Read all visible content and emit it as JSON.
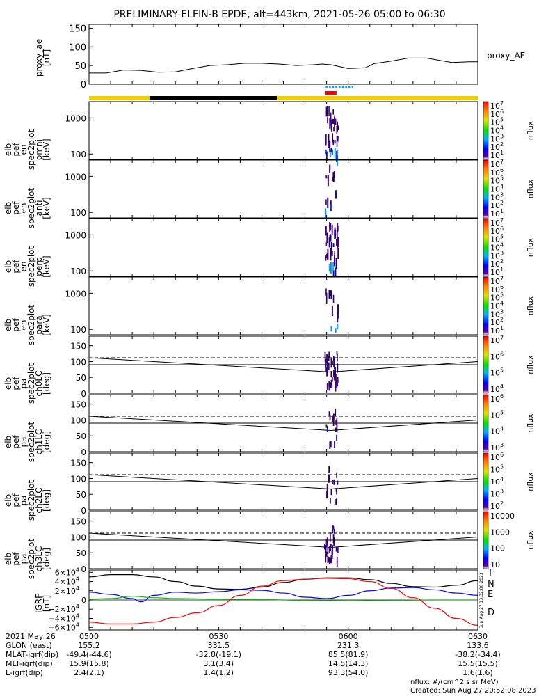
{
  "title": "PRELIMINARY ELFIN-B EPDE, alt=443km, 2021-05-26 05:00 to 06:30",
  "chart_data": {
    "type": "line",
    "time_range": [
      "05:00",
      "06:30"
    ],
    "proxy_ae": {
      "ylabel": [
        "proxy_ae",
        "[nT]"
      ],
      "legend": "proxy_AE",
      "yticks": [
        "0",
        "50",
        "100",
        "150"
      ],
      "ylim": [
        0,
        160
      ],
      "t": [
        0,
        4,
        8,
        12,
        16,
        20,
        24,
        28,
        32,
        36,
        40,
        44,
        48,
        52,
        54,
        56,
        60,
        64,
        66,
        70,
        74,
        78,
        80,
        84,
        88,
        90
      ],
      "v": [
        30,
        30,
        38,
        37,
        32,
        33,
        42,
        50,
        52,
        56,
        56,
        54,
        50,
        52,
        54,
        52,
        42,
        44,
        55,
        62,
        70,
        70,
        66,
        58,
        60,
        60
      ]
    },
    "status_bar": {
      "colors": [
        "#f0d000",
        "#000000",
        "#f0d000"
      ],
      "segments_min": [
        [
          0,
          14
        ],
        [
          14,
          43.5
        ],
        [
          43.5,
          90
        ]
      ]
    },
    "spec_panels": [
      {
        "ylabel": [
          "elb",
          "pef",
          "en",
          "spec2plot",
          "omni",
          "[keV]"
        ],
        "yticks": [
          "100",
          "1000"
        ],
        "cbar_ticks": [
          "10¹",
          "10²",
          "10³",
          "10⁴",
          "10⁵",
          "10⁶",
          "10⁷"
        ],
        "cbar_label": "nflux"
      },
      {
        "ylabel": [
          "elb",
          "pef",
          "en",
          "spec2plot",
          "anti",
          "[keV]"
        ],
        "yticks": [
          "100",
          "1000"
        ],
        "cbar_ticks": [
          "10¹",
          "10²",
          "10³",
          "10⁴",
          "10⁵",
          "10⁶",
          "10⁷"
        ],
        "cbar_label": "nflux"
      },
      {
        "ylabel": [
          "elb",
          "pef",
          "en",
          "spec2plot",
          "perp",
          "[keV]"
        ],
        "yticks": [
          "100",
          "1000"
        ],
        "cbar_ticks": [
          "10¹",
          "10²",
          "10³",
          "10⁴",
          "10⁵",
          "10⁶",
          "10⁷"
        ],
        "cbar_label": "nflux"
      },
      {
        "ylabel": [
          "elb",
          "pef",
          "en",
          "spec2plot",
          "para",
          "[keV]"
        ],
        "yticks": [
          "100",
          "1000"
        ],
        "cbar_ticks": [
          "10¹",
          "10²",
          "10³",
          "10⁴",
          "10⁵",
          "10⁶",
          "10⁷"
        ],
        "cbar_label": "nflux"
      }
    ],
    "pa_panels": [
      {
        "ylabel": [
          "elb",
          "pef",
          "pa",
          "spec2plot",
          "ch0LC",
          "[deg]"
        ],
        "yticks": [
          "0",
          "50",
          "100",
          "150"
        ],
        "cbar_ticks": [
          "10⁴",
          "10⁵",
          "10⁶",
          "10⁷"
        ],
        "cbar_label": "nflux"
      },
      {
        "ylabel": [
          "elb",
          "pef",
          "pa",
          "spec2plot",
          "ch1LC",
          "[deg]"
        ],
        "yticks": [
          "0",
          "50",
          "100",
          "150"
        ],
        "cbar_ticks": [
          "10³",
          "10⁴",
          "10⁵",
          "10⁶"
        ],
        "cbar_label": "nflux"
      },
      {
        "ylabel": [
          "elb",
          "pef",
          "pa",
          "spec2plot",
          "ch2LC",
          "[deg]"
        ],
        "yticks": [
          "0",
          "50",
          "100",
          "150"
        ],
        "cbar_ticks": [
          "10²",
          "10³",
          "10⁴",
          "10⁵",
          "10⁶"
        ],
        "cbar_label": "nflux"
      },
      {
        "ylabel": [
          "elb",
          "pef",
          "pa",
          "spec2plot",
          "ch3LC",
          "[deg]"
        ],
        "yticks": [
          "0",
          "50",
          "100",
          "150"
        ],
        "cbar_ticks": [
          "10",
          "100",
          "1000",
          "10000"
        ],
        "cbar_label": "nflux"
      }
    ],
    "igrf": {
      "ylabel": [
        "IGRF",
        "[nT]"
      ],
      "yticks": [
        "6×10⁴",
        "4×10⁴",
        "2×10⁴",
        "0",
        "−2×10⁴",
        "−4×10⁴",
        "−6×10⁴"
      ],
      "ylim": [
        -65000,
        65000
      ],
      "series": [
        {
          "name": "T",
          "color": "#000000",
          "t": [
            0,
            5,
            10,
            15,
            20,
            25,
            30,
            35,
            40,
            45,
            50,
            55,
            60,
            65,
            70,
            75,
            80,
            85,
            90
          ],
          "v": [
            50000,
            55000,
            55000,
            50000,
            40000,
            30000,
            24000,
            23000,
            28000,
            38000,
            45000,
            48000,
            48000,
            44000,
            36000,
            29000,
            28000,
            32000,
            42000
          ]
        },
        {
          "name": "N",
          "color": "#0000ff",
          "t": [
            0,
            5,
            10,
            12,
            15,
            20,
            25,
            30,
            35,
            40,
            45,
            50,
            55,
            60,
            65,
            70,
            75,
            80,
            85,
            90
          ],
          "v": [
            17000,
            12000,
            3000,
            -4000,
            10000,
            17000,
            15000,
            18000,
            22000,
            21000,
            15000,
            6000,
            3000,
            10000,
            20000,
            26000,
            27000,
            22000,
            15000,
            10000
          ]
        },
        {
          "name": "E",
          "color": "#00c000",
          "t": [
            0,
            5,
            10,
            15,
            20,
            30,
            40,
            50,
            60,
            70,
            80,
            90
          ],
          "v": [
            2000,
            3000,
            8000,
            5000,
            3000,
            2000,
            1000,
            -1000,
            -2000,
            -1000,
            0,
            0
          ]
        },
        {
          "name": "D",
          "color": "#ff0000",
          "t": [
            0,
            5,
            10,
            15,
            20,
            25,
            30,
            35,
            40,
            45,
            50,
            55,
            60,
            65,
            70,
            75,
            80,
            85,
            90
          ],
          "v": [
            -48000,
            -52000,
            -52000,
            -48000,
            -38000,
            -28000,
            -12000,
            10000,
            30000,
            42000,
            45000,
            47000,
            46000,
            40000,
            25000,
            5000,
            -18000,
            -40000,
            -55000
          ]
        }
      ]
    },
    "footer": {
      "rows": [
        {
          "label": "2021 May 26",
          "values": [
            "0500",
            "0530",
            "0600",
            "0630"
          ]
        },
        {
          "label": "GLON (east)",
          "values": [
            "155.2",
            "331.5",
            "231.3",
            "133.6"
          ]
        },
        {
          "label": "MLAT-igrf(dip)",
          "values": [
            "-49.4(-44.6)",
            "-32.8(-19.1)",
            "85.5(81.9)",
            "-38.2(-34.4)"
          ]
        },
        {
          "label": "MLT-igrf(dip)",
          "values": [
            "15.9(15.8)",
            "3.1(3.4)",
            "14.5(14.3)",
            "15.5(15.5)"
          ]
        },
        {
          "label": "L-igrf(dip)",
          "values": [
            "2.4(2.1)",
            "1.4(1.2)",
            "93.3(54.0)",
            "1.6(1.6)"
          ]
        }
      ],
      "units_note": "nflux: #/(cm^2 s sr MeV)",
      "created": "Created: Sun Aug 27 20:52:08 2023",
      "side_stamp": "Sun Aug 27 13:32:06 2023"
    }
  }
}
